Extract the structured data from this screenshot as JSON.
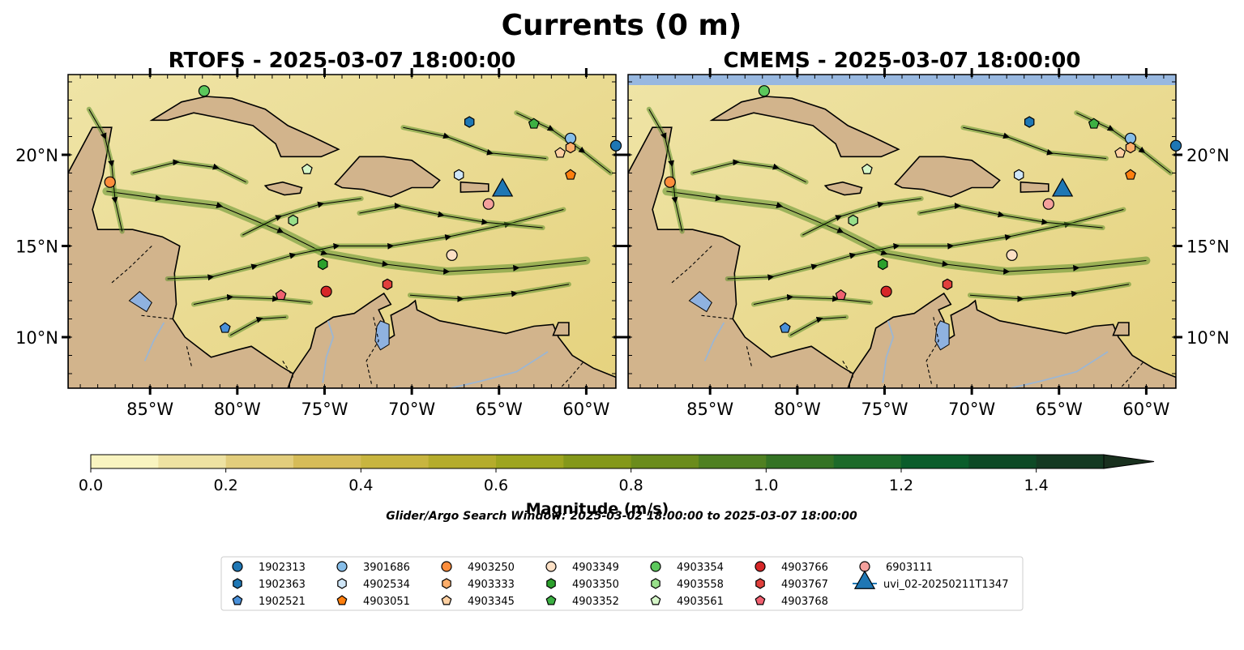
{
  "suptitle": "Currents (0 m)",
  "panels": [
    {
      "title": "RTOFS - 2025-03-07 18:00:00",
      "source": "RTOFS"
    },
    {
      "title": "CMEMS - 2025-03-07 18:00:00",
      "source": "CMEMS"
    }
  ],
  "chart_data": {
    "type": "heatmap",
    "title": "Currents (0 m)",
    "variable": "surface current magnitude with streamlines",
    "lon_ticks": [
      "85°W",
      "80°W",
      "75°W",
      "70°W",
      "65°W",
      "60°W"
    ],
    "lat_ticks": [
      "20°N",
      "15°N",
      "10°N"
    ],
    "lon_range": [
      -89.7,
      -58.3
    ],
    "lat_range": [
      7.2,
      24.4
    ],
    "colorbar": {
      "label": "Magnitude (m/s)",
      "ticks": [
        "0.0",
        "0.2",
        "0.4",
        "0.6",
        "0.8",
        "1.0",
        "1.2",
        "1.4"
      ],
      "range": [
        0,
        1.5
      ],
      "extend": "max",
      "colors": [
        "#f9f4c0",
        "#eee2a2",
        "#e2cd7c",
        "#d6bc58",
        "#c8b53f",
        "#b5ac2c",
        "#9ea51f",
        "#84981a",
        "#6b8c1c",
        "#4f8021",
        "#347324",
        "#1d6a2a",
        "#0b5d2b",
        "#0e4a26",
        "#143a22",
        "#19301e"
      ]
    },
    "search_window": "Glider/Argo Search Window: 2025-03-02 18:00:00 to 2025-03-07 18:00:00",
    "legend_columns": [
      [
        {
          "id": "1902313",
          "shape": "circle",
          "color": "#1f77b4"
        },
        {
          "id": "1902363",
          "shape": "hexagon",
          "color": "#1f77b4"
        },
        {
          "id": "1902521",
          "shape": "pentagon",
          "color": "#4a90d9"
        }
      ],
      [
        {
          "id": "3901686",
          "shape": "circle",
          "color": "#86bde8"
        },
        {
          "id": "4902534",
          "shape": "hexagon",
          "color": "#cfe6f7"
        },
        {
          "id": "4903051",
          "shape": "pentagon",
          "color": "#ff7f0e"
        }
      ],
      [
        {
          "id": "4903250",
          "shape": "circle",
          "color": "#fd8d3c"
        },
        {
          "id": "4903333",
          "shape": "hexagon",
          "color": "#fdae6b"
        },
        {
          "id": "4903345",
          "shape": "pentagon",
          "color": "#fdd0a2"
        }
      ],
      [
        {
          "id": "4903349",
          "shape": "circle",
          "color": "#fde0c5"
        },
        {
          "id": "4903350",
          "shape": "hexagon",
          "color": "#2ca02c"
        },
        {
          "id": "4903352",
          "shape": "pentagon",
          "color": "#3cb043"
        }
      ],
      [
        {
          "id": "4903354",
          "shape": "circle",
          "color": "#5cc85c"
        },
        {
          "id": "4903558",
          "shape": "hexagon",
          "color": "#98df8a"
        },
        {
          "id": "4903561",
          "shape": "pentagon",
          "color": "#d5f5c8"
        }
      ],
      [
        {
          "id": "4903766",
          "shape": "circle",
          "color": "#d62728"
        },
        {
          "id": "4903767",
          "shape": "hexagon",
          "color": "#e0403c"
        },
        {
          "id": "4903768",
          "shape": "pentagon",
          "color": "#f06070"
        }
      ],
      [
        {
          "id": "6903111",
          "shape": "circle",
          "color": "#f4a09c"
        },
        {
          "id": "uvi_02-20250211T1347",
          "shape": "triangle",
          "color": "#1f77b4"
        }
      ]
    ],
    "markers": [
      {
        "id": "1902313",
        "lon": -58.3,
        "lat": 20.5
      },
      {
        "id": "1902363",
        "lon": -66.7,
        "lat": 21.8
      },
      {
        "id": "1902521",
        "lon": -80.7,
        "lat": 10.5
      },
      {
        "id": "3901686",
        "lon": -60.9,
        "lat": 20.9
      },
      {
        "id": "4902534",
        "lon": -67.3,
        "lat": 18.9
      },
      {
        "id": "4903051",
        "lon": -60.9,
        "lat": 18.9
      },
      {
        "id": "4903250",
        "lon": -87.3,
        "lat": 18.5
      },
      {
        "id": "4903333",
        "lon": -60.9,
        "lat": 20.4
      },
      {
        "id": "4903345",
        "lon": -61.5,
        "lat": 20.1
      },
      {
        "id": "4903349",
        "lon": -67.7,
        "lat": 14.5
      },
      {
        "id": "4903350",
        "lon": -75.1,
        "lat": 14.0
      },
      {
        "id": "4903352",
        "lon": -63.0,
        "lat": 21.7
      },
      {
        "id": "4903354",
        "lon": -81.9,
        "lat": 23.5
      },
      {
        "id": "4903558",
        "lon": -76.8,
        "lat": 16.4
      },
      {
        "id": "4903561",
        "lon": -76.0,
        "lat": 19.2
      },
      {
        "id": "4903766",
        "lon": -74.9,
        "lat": 12.5
      },
      {
        "id": "4903767",
        "lon": -71.4,
        "lat": 12.9
      },
      {
        "id": "4903768",
        "lon": -77.5,
        "lat": 12.3
      },
      {
        "id": "6903111",
        "lon": -65.6,
        "lat": 17.3
      },
      {
        "id": "uvi_02-20250211T1347",
        "lon": -64.8,
        "lat": 18.1
      }
    ]
  }
}
